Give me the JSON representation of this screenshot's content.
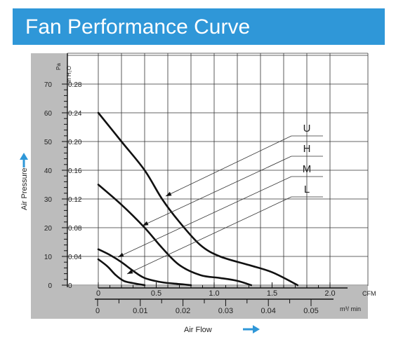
{
  "header": {
    "title": "Fan Performance Curve"
  },
  "colors": {
    "banner": "#2f97d8",
    "banner_text": "#ffffff",
    "arrow": "#2f97d8",
    "curve": "#111111",
    "panel": "#bcbcbc",
    "grid": "#333333"
  },
  "chart_data": {
    "type": "line",
    "title": "",
    "xlabel": "Air Flow",
    "ylabel": "Air Pressure",
    "x_unit_primary": "CFM",
    "x_unit_secondary": "m³/ min",
    "y_unit_primary": "Pa",
    "y_unit_secondary": "In H₂O",
    "xlim": [
      0,
      2.0
    ],
    "ylim": [
      0,
      80
    ],
    "x_ticks": [
      "0",
      "0.5",
      "1.0",
      "1.5",
      "2.0"
    ],
    "x_ticks_secondary": [
      "0",
      "0.01",
      "0.02",
      "0.03",
      "0.04",
      "0.05"
    ],
    "y_ticks": [
      "0",
      "10",
      "20",
      "30",
      "40",
      "50",
      "60",
      "70"
    ],
    "y_ticks_secondary": [
      "0",
      "0.04",
      "0.08",
      "0.12",
      "0.16",
      "0.20",
      "0.24",
      "0.28"
    ],
    "grid": true,
    "series": [
      {
        "name": "U",
        "points": [
          [
            0,
            60
          ],
          [
            0.2,
            50
          ],
          [
            0.4,
            40
          ],
          [
            0.55,
            30
          ],
          [
            0.7,
            22
          ],
          [
            0.88,
            14
          ],
          [
            1.05,
            10
          ],
          [
            1.3,
            7
          ],
          [
            1.5,
            4.5
          ],
          [
            1.72,
            0
          ]
        ]
      },
      {
        "name": "H",
        "points": [
          [
            0,
            35
          ],
          [
            0.2,
            28
          ],
          [
            0.4,
            20
          ],
          [
            0.55,
            13
          ],
          [
            0.7,
            7
          ],
          [
            0.88,
            3.5
          ],
          [
            1.05,
            2.5
          ],
          [
            1.2,
            1.5
          ],
          [
            1.32,
            0
          ]
        ]
      },
      {
        "name": "M",
        "points": [
          [
            0,
            12.5
          ],
          [
            0.1,
            10.5
          ],
          [
            0.2,
            8
          ],
          [
            0.3,
            5
          ],
          [
            0.4,
            2.5
          ],
          [
            0.55,
            1
          ],
          [
            0.7,
            0.4
          ],
          [
            0.8,
            0
          ]
        ]
      },
      {
        "name": "L",
        "points": [
          [
            0,
            9
          ],
          [
            0.08,
            6.5
          ],
          [
            0.15,
            3.5
          ],
          [
            0.22,
            1.5
          ],
          [
            0.3,
            0.7
          ],
          [
            0.4,
            0
          ]
        ]
      }
    ]
  }
}
